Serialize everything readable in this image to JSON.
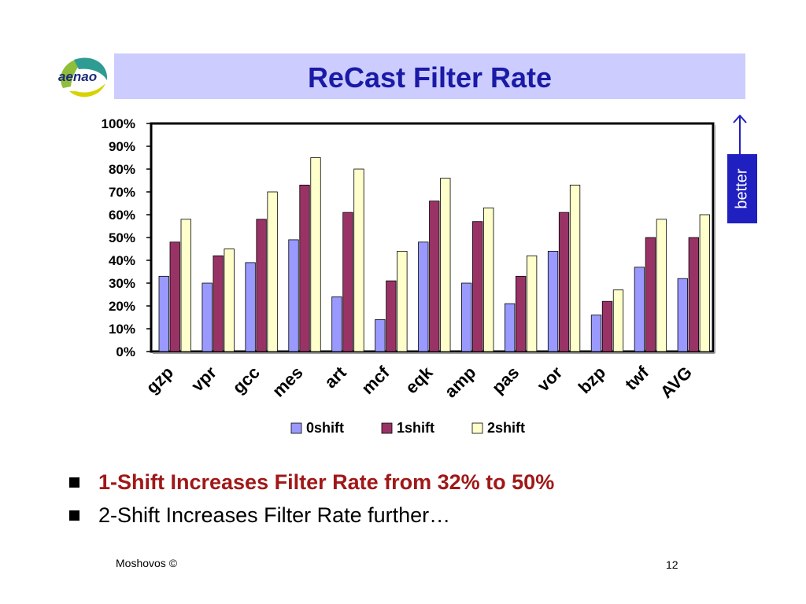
{
  "slide": {
    "title": "ReCast Filter Rate",
    "logo_text": "aenao",
    "better_label": "better",
    "bullets": [
      "1-Shift Increases Filter Rate from 32% to 50%",
      "2-Shift Increases Filter Rate further…"
    ],
    "footer_left": "Moshovos ©",
    "page_number": "12"
  },
  "colors": {
    "title_bg": "#ccccff",
    "title_text": "#1a1aa6",
    "highlight_text": "#a01818",
    "better_bg": "#2020c0",
    "series_0shift": "#9999ff",
    "series_1shift": "#993366",
    "series_2shift": "#ffffcc"
  },
  "chart_data": {
    "type": "bar",
    "categories": [
      "gzp",
      "vpr",
      "gcc",
      "mes",
      "art",
      "mcf",
      "eqk",
      "amp",
      "pas",
      "vor",
      "bzp",
      "twf",
      "AVG"
    ],
    "series": [
      {
        "name": "0shift",
        "color": "#9999ff",
        "values": [
          33,
          30,
          39,
          49,
          24,
          14,
          48,
          30,
          21,
          44,
          16,
          37,
          32
        ]
      },
      {
        "name": "1shift",
        "color": "#993366",
        "values": [
          48,
          42,
          58,
          73,
          61,
          31,
          66,
          57,
          33,
          61,
          22,
          50,
          50
        ]
      },
      {
        "name": "2shift",
        "color": "#ffffcc",
        "values": [
          58,
          45,
          70,
          85,
          80,
          44,
          76,
          63,
          42,
          73,
          27,
          58,
          60
        ]
      }
    ],
    "y_ticks": [
      "0%",
      "10%",
      "20%",
      "30%",
      "40%",
      "50%",
      "60%",
      "70%",
      "80%",
      "90%",
      "100%"
    ],
    "ylim": [
      0,
      100
    ],
    "legend_position": "bottom",
    "grid": false
  }
}
